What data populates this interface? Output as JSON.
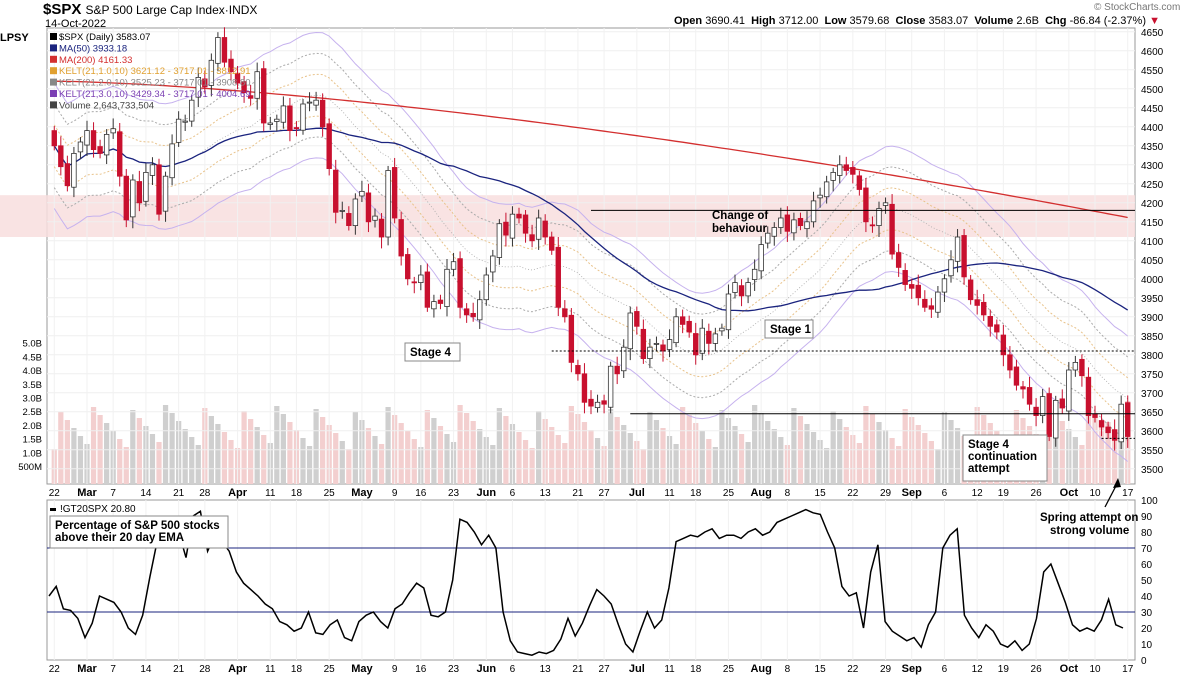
{
  "header": {
    "symbol": "$SPX",
    "name": "S&P 500 Large Cap Index",
    "exchange": "INDX",
    "date": "14-Oct-2022",
    "open_label": "Open",
    "open": "3690.41",
    "high_label": "High",
    "high": "3712.00",
    "low_label": "Low",
    "low": "3579.68",
    "close_label": "Close",
    "close": "3583.07",
    "volume_label": "Volume",
    "volume": "2.6B",
    "chg_label": "Chg",
    "chg": "-86.84 (-2.37%)",
    "credit": "© StockCharts.com",
    "lpsy": "LPSY"
  },
  "legend": [
    {
      "text": "$SPX (Daily) 3583.07",
      "color": "#000000",
      "icon": "candle-icon"
    },
    {
      "text": "MA(50) 3933.18",
      "color": "#1a237e",
      "icon": "line-icon"
    },
    {
      "text": "MA(200) 4161.33",
      "color": "#d32f2f",
      "icon": "line-icon"
    },
    {
      "text": "KELT(21,1.0,10) 3621.12 - 3717.01 - 3812.91",
      "color": "#e0a030",
      "icon": "line-icon"
    },
    {
      "text": "KELT(21,2.0,10) 3525.23 - 3717.01 - 3908.80",
      "color": "#888888",
      "icon": "line-icon"
    },
    {
      "text": "KELT(21,3.0,10) 3429.34 - 3717.01 - 4004.69",
      "color": "#7b3fb3",
      "icon": "line-icon"
    },
    {
      "text": "Volume 2,643,733,504",
      "color": "#444444",
      "icon": "bars-icon"
    }
  ],
  "annotations": {
    "stage4_left": "Stage 4",
    "change_of_behaviour": "Change of behaviour",
    "stage1": "Stage 1",
    "stage4_continuation": "Stage 4 continuation attempt",
    "spring": "Spring attempt on strong volume",
    "indicator_title": "Percentage of S&P 500 stocks above their 20 day EMA"
  },
  "colors": {
    "up": "#ffffff",
    "down": "#c8102e",
    "ma50": "#1a237e",
    "ma200": "#d32f2f",
    "kelt1": "#e8c28a",
    "kelt2": "#aaaaaa",
    "kelt3": "#c6b2ee",
    "vol_up": "#cfcfcf",
    "vol_down": "#f3cfcf",
    "zone": "#f8dede"
  },
  "chart_data": [
    {
      "type": "candlestick",
      "title": "$SPX S&P 500 Large Cap Index (Daily)",
      "x_tick_labels": [
        "22",
        "Mar",
        "7",
        "14",
        "21",
        "28",
        "Apr",
        "11",
        "18",
        "25",
        "May",
        "9",
        "16",
        "23",
        "Jun",
        "6",
        "13",
        "21",
        "27",
        "Jul",
        "11",
        "18",
        "25",
        "Aug",
        "8",
        "15",
        "22",
        "29",
        "Sep",
        "6",
        "12",
        "19",
        "26",
        "Oct",
        "10",
        "17"
      ],
      "ylim": [
        3460,
        4660
      ],
      "y_ticks": [
        3500,
        3550,
        3600,
        3650,
        3700,
        3750,
        3800,
        3850,
        3900,
        3950,
        4000,
        4050,
        4100,
        4150,
        4200,
        4250,
        4300,
        4350,
        4400,
        4450,
        4500,
        4550,
        4600,
        4650
      ],
      "volume_ticks": [
        "500M",
        "1.0B",
        "1.5B",
        "2.0B",
        "2.5B",
        "3.0B",
        "3.5B",
        "4.0B",
        "4.5B",
        "5.0B"
      ],
      "closes": [
        4350,
        4295,
        4245,
        4330,
        4360,
        4390,
        4340,
        4330,
        4380,
        4395,
        4270,
        4155,
        4260,
        4200,
        4280,
        4300,
        4170,
        4270,
        4355,
        4420,
        4415,
        4470,
        4530,
        4505,
        4575,
        4635,
        4570,
        4545,
        4515,
        4490,
        4475,
        4545,
        4410,
        4410,
        4420,
        4455,
        4390,
        4395,
        4460,
        4465,
        4470,
        4400,
        4290,
        4175,
        4180,
        4140,
        4210,
        4230,
        4150,
        4165,
        4110,
        4285,
        4160,
        4060,
        4000,
        3990,
        4010,
        3925,
        3940,
        3935,
        4025,
        4045,
        3925,
        3905,
        3900,
        3945,
        4010,
        4060,
        4145,
        4115,
        4170,
        4160,
        4120,
        4100,
        4160,
        4110,
        4075,
        3925,
        3900,
        3780,
        3750,
        3675,
        3665,
        3675,
        3670,
        3770,
        3750,
        3820,
        3910,
        3875,
        3790,
        3820,
        3830,
        3810,
        3840,
        3900,
        3880,
        3860,
        3800,
        3870,
        3830,
        3855,
        3870,
        3960,
        3990,
        3955,
        3990,
        4025,
        4090,
        4120,
        4135,
        4160,
        4125,
        4155,
        4140,
        4150,
        4205,
        4220,
        4255,
        4280,
        4300,
        4285,
        4275,
        4235,
        4150,
        4140,
        4185,
        4200,
        4065,
        4030,
        3985,
        3975,
        3950,
        3925,
        3920,
        3965,
        4000,
        4050,
        4110,
        4005,
        3945,
        3930,
        3905,
        3875,
        3860,
        3800,
        3760,
        3720,
        3710,
        3670,
        3640,
        3690,
        3585,
        3680,
        3660,
        3760,
        3780,
        3745,
        3640,
        3635,
        3610,
        3595,
        3575,
        3670,
        3585
      ],
      "ma50_ends": [
        4420,
        3933.18
      ],
      "ma200_ends": [
        4520,
        4161.33
      ],
      "resistance_levels": [
        4180,
        3810,
        3645,
        3580
      ],
      "supply_zone": [
        4110,
        4220
      ]
    },
    {
      "type": "line",
      "title": "!GT20SPX 20.80",
      "ylim": [
        0,
        100
      ],
      "y_ticks": [
        0,
        10,
        20,
        30,
        40,
        50,
        60,
        70,
        80,
        90,
        100
      ],
      "reference_lines": [
        30,
        70
      ],
      "x_tick_labels": [
        "22",
        "Mar",
        "7",
        "14",
        "21",
        "28",
        "Apr",
        "11",
        "18",
        "25",
        "May",
        "9",
        "16",
        "23",
        "Jun",
        "6",
        "13",
        "21",
        "27",
        "Jul",
        "11",
        "18",
        "25",
        "Aug",
        "8",
        "15",
        "22",
        "29",
        "Sep",
        "6",
        "12",
        "19",
        "26",
        "Oct",
        "10",
        "17"
      ],
      "values": [
        40,
        46,
        32,
        31,
        26,
        14,
        23,
        40,
        38,
        36,
        30,
        20,
        16,
        28,
        52,
        74,
        88,
        84,
        80,
        64,
        90,
        93,
        68,
        78,
        74,
        68,
        55,
        48,
        44,
        40,
        35,
        32,
        24,
        22,
        18,
        20,
        30,
        17,
        16,
        22,
        25,
        14,
        12,
        24,
        28,
        30,
        24,
        20,
        32,
        35,
        42,
        48,
        45,
        28,
        27,
        30,
        50,
        88,
        86,
        80,
        72,
        78,
        70,
        30,
        12,
        5,
        4,
        3,
        5,
        4,
        6,
        13,
        26,
        15,
        23,
        34,
        44,
        40,
        35,
        22,
        10,
        5,
        18,
        30,
        20,
        25,
        45,
        74,
        76,
        78,
        77,
        80,
        82,
        76,
        78,
        78,
        76,
        80,
        82,
        78,
        80,
        86,
        88,
        90,
        92,
        94,
        92,
        91,
        80,
        70,
        46,
        40,
        42,
        20,
        55,
        72,
        24,
        18,
        15,
        12,
        14,
        8,
        22,
        30,
        70,
        78,
        82,
        28,
        20,
        14,
        22,
        18,
        10,
        8,
        12,
        6,
        10,
        26,
        55,
        60,
        48,
        36,
        22,
        18,
        20,
        18,
        25,
        38,
        22,
        20
      ]
    }
  ]
}
